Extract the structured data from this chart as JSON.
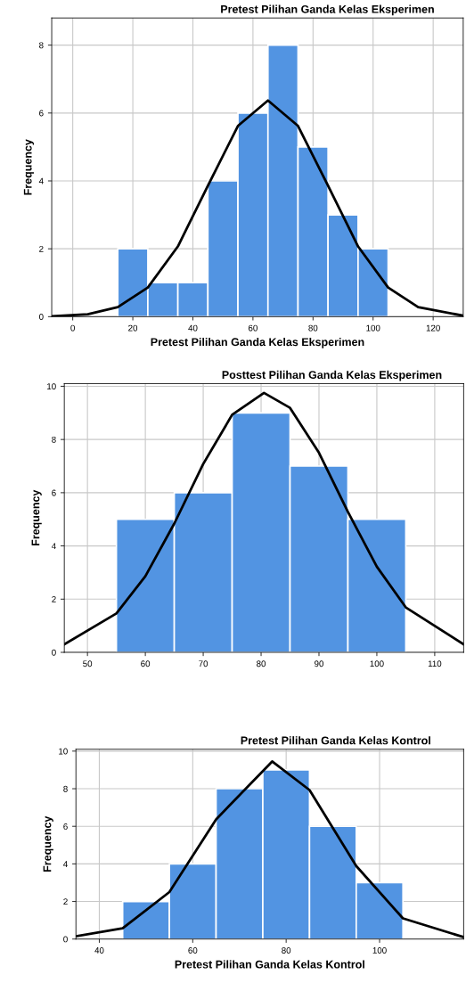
{
  "chart_data": [
    {
      "type": "histogram",
      "title": "Pretest Pilihan Ganda Kelas Eksperimen",
      "xlabel": "Pretest Pilihan Ganda Kelas Eksperimen",
      "ylabel": "Frequency",
      "bins": [
        15,
        25,
        35,
        45,
        55,
        65,
        75,
        85,
        95,
        105
      ],
      "values": [
        2,
        1,
        1,
        4,
        6,
        8,
        5,
        3,
        2
      ],
      "color": "#5294e2",
      "xlim": [
        -7,
        130
      ],
      "xticks": [
        0,
        20,
        40,
        60,
        80,
        100,
        120
      ],
      "ylim": [
        0,
        8.8
      ],
      "yticks": [
        0,
        2,
        4,
        6,
        8
      ],
      "grid": true,
      "series": [
        {
          "type": "line",
          "color": "#000000",
          "x": [
            -7,
            5,
            15,
            25,
            35,
            45,
            55,
            65,
            75,
            85,
            95,
            105,
            115,
            130
          ],
          "values": [
            0.01,
            0.07,
            0.28,
            0.86,
            2.07,
            3.86,
            5.62,
            6.37,
            5.62,
            3.86,
            2.07,
            0.86,
            0.28,
            0.03
          ]
        }
      ]
    },
    {
      "type": "histogram",
      "title": "Posttest Pilihan Ganda Kelas Eksperimen",
      "ylabel": "Frequency",
      "bins": [
        55,
        65,
        75,
        85,
        95,
        105
      ],
      "values": [
        5,
        6,
        9,
        7,
        5
      ],
      "color": "#5294e2",
      "xlim": [
        46,
        115
      ],
      "xticks": [
        50,
        60,
        70,
        80,
        90,
        100,
        110
      ],
      "ylim": [
        0,
        10.1
      ],
      "yticks": [
        0,
        2,
        4,
        6,
        8,
        10
      ],
      "grid": true,
      "series": [
        {
          "type": "line",
          "color": "#000000",
          "x": [
            46,
            55,
            60,
            65,
            70,
            75,
            80.5,
            85,
            90,
            95,
            100,
            105,
            115
          ],
          "values": [
            0.3,
            1.46,
            2.86,
            4.84,
            7.08,
            8.93,
            9.75,
            9.19,
            7.5,
            5.28,
            3.22,
            1.69,
            0.3
          ]
        }
      ]
    },
    {
      "type": "histogram",
      "title": "Pretest Pilihan Ganda Kelas Kontrol",
      "xlabel": "Pretest Pilihan Ganda Kelas Kontrol",
      "ylabel": "Frequency",
      "bins": [
        45,
        55,
        65,
        75,
        85,
        95,
        105
      ],
      "values": [
        2,
        4,
        8,
        9,
        6,
        3
      ],
      "color": "#5294e2",
      "xlim": [
        35,
        118
      ],
      "xticks": [
        40,
        60,
        80,
        100
      ],
      "ylim": [
        0,
        10.1
      ],
      "yticks": [
        0,
        2,
        4,
        6,
        8,
        10
      ],
      "grid": true,
      "series": [
        {
          "type": "line",
          "color": "#000000",
          "x": [
            35,
            45,
            55,
            65,
            77,
            85,
            95,
            105,
            118
          ],
          "values": [
            0.15,
            0.57,
            2.5,
            6.37,
            9.45,
            7.93,
            3.89,
            1.1,
            0.1
          ]
        }
      ]
    }
  ]
}
